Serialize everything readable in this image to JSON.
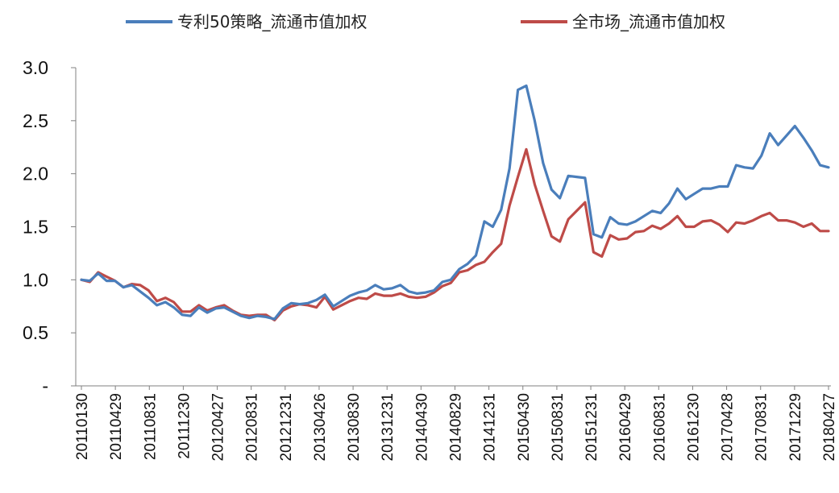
{
  "chart_data": {
    "type": "line",
    "title": "",
    "xlabel": "",
    "ylabel": "",
    "ylim": [
      0,
      3.0
    ],
    "yticks": [
      "-",
      "0.5",
      "1.0",
      "1.5",
      "2.0",
      "2.5",
      "3.0"
    ],
    "grid": false,
    "legend_position": "top",
    "xtick_labels": [
      "20110130",
      "20110429",
      "20110831",
      "20111230",
      "20120427",
      "20120831",
      "20121231",
      "20130426",
      "20130830",
      "20131231",
      "20140430",
      "20140829",
      "20141231",
      "20150430",
      "20150831",
      "20151231",
      "20160429",
      "20160831",
      "20161230",
      "20170428",
      "20170831",
      "20171229",
      "20180427"
    ],
    "series": [
      {
        "name": "专利50策略_流通市值加权",
        "color": "#4a7ebb",
        "values": [
          1.0,
          0.99,
          1.06,
          0.99,
          0.99,
          0.93,
          0.95,
          0.89,
          0.83,
          0.76,
          0.79,
          0.74,
          0.67,
          0.66,
          0.74,
          0.69,
          0.73,
          0.74,
          0.7,
          0.66,
          0.64,
          0.66,
          0.65,
          0.63,
          0.73,
          0.78,
          0.77,
          0.78,
          0.81,
          0.86,
          0.75,
          0.8,
          0.85,
          0.88,
          0.9,
          0.95,
          0.91,
          0.92,
          0.95,
          0.89,
          0.87,
          0.88,
          0.9,
          0.98,
          1.0,
          1.1,
          1.15,
          1.23,
          1.55,
          1.5,
          1.66,
          2.05,
          2.79,
          2.83,
          2.5,
          2.1,
          1.85,
          1.77,
          1.98,
          1.97,
          1.96,
          1.43,
          1.4,
          1.59,
          1.53,
          1.52,
          1.55,
          1.6,
          1.65,
          1.63,
          1.72,
          1.86,
          1.76,
          1.81,
          1.86,
          1.86,
          1.88,
          1.88,
          2.08,
          2.06,
          2.05,
          2.17,
          2.38,
          2.27,
          2.36,
          2.45,
          2.34,
          2.22,
          2.08,
          2.06
        ]
      },
      {
        "name": "全市场_流通市值加权",
        "color": "#be4b48",
        "values": [
          1.0,
          0.98,
          1.07,
          1.03,
          0.99,
          0.93,
          0.96,
          0.95,
          0.9,
          0.8,
          0.83,
          0.79,
          0.7,
          0.7,
          0.76,
          0.71,
          0.74,
          0.76,
          0.71,
          0.67,
          0.66,
          0.67,
          0.67,
          0.62,
          0.71,
          0.75,
          0.77,
          0.76,
          0.74,
          0.84,
          0.72,
          0.76,
          0.8,
          0.83,
          0.82,
          0.87,
          0.85,
          0.85,
          0.87,
          0.84,
          0.83,
          0.84,
          0.88,
          0.94,
          0.97,
          1.07,
          1.09,
          1.14,
          1.17,
          1.26,
          1.34,
          1.7,
          1.97,
          2.23,
          1.9,
          1.65,
          1.41,
          1.36,
          1.57,
          1.65,
          1.73,
          1.26,
          1.22,
          1.42,
          1.38,
          1.39,
          1.45,
          1.46,
          1.51,
          1.48,
          1.53,
          1.6,
          1.5,
          1.5,
          1.55,
          1.56,
          1.52,
          1.45,
          1.54,
          1.53,
          1.56,
          1.6,
          1.63,
          1.56,
          1.56,
          1.54,
          1.5,
          1.53,
          1.46,
          1.46
        ]
      }
    ]
  }
}
